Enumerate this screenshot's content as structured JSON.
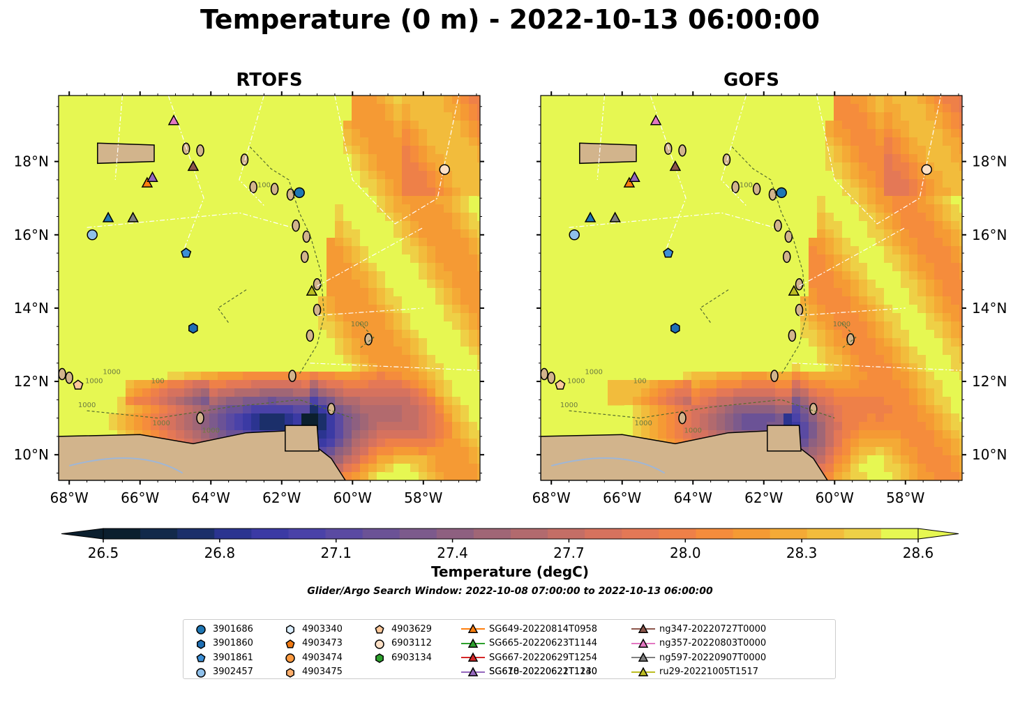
{
  "title": "Temperature (0 m) - 2022-10-13 06:00:00",
  "colors": {
    "land": "#d2b48c",
    "ocean_warm": "#e6f752",
    "lake": "#9fb6d6",
    "cmap": [
      "#0b1f2e",
      "#12294a",
      "#1b2f6a",
      "#2b3490",
      "#3b3aa4",
      "#4a42a8",
      "#5a4aa2",
      "#6b5296",
      "#7c5a8c",
      "#8e6080",
      "#a06676",
      "#b26a6e",
      "#c46e66",
      "#d6725e",
      "#e47856",
      "#ee8048",
      "#f58c3c",
      "#f59a34",
      "#f4aa36",
      "#f2bc3c",
      "#eed046",
      "#e6f752"
    ]
  },
  "chart_data": {
    "type": "heatmap",
    "variable": "Temperature (degC)",
    "panels": [
      {
        "name": "RTOFS"
      },
      {
        "name": "GOFS"
      }
    ],
    "xlim": [
      -68.3,
      -56.4
    ],
    "ylim": [
      9.3,
      19.8
    ],
    "x_ticks": [
      -68,
      -66,
      -64,
      -62,
      -60,
      -58
    ],
    "x_tick_labels": [
      "68°W",
      "66°W",
      "64°W",
      "62°W",
      "60°W",
      "58°W"
    ],
    "y_ticks": [
      10,
      12,
      14,
      16,
      18
    ],
    "y_tick_labels": [
      "10°N",
      "12°N",
      "14°N",
      "16°N",
      "18°N"
    ],
    "colorbar": {
      "min": 26.5,
      "max": 28.6,
      "ticks": [
        26.5,
        26.8,
        27.1,
        27.4,
        27.7,
        28.0,
        28.3,
        28.6
      ],
      "tick_labels": [
        "26.5",
        "26.8",
        "27.1",
        "27.4",
        "27.7",
        "28.0",
        "28.3",
        "28.6"
      ],
      "label": "Temperature (degC)",
      "extend": "both"
    },
    "contour_labels": [
      "1000",
      "1000",
      "100",
      "100",
      "1000",
      "1000",
      "1000",
      "1000"
    ],
    "observations": [
      {
        "id": "3901686",
        "lon": -61.5,
        "lat": 17.15,
        "marker": "circle",
        "color": "#1f77b4"
      },
      {
        "id": "3901860",
        "lon": -64.5,
        "lat": 13.45,
        "marker": "hexagon",
        "color": "#1f6fb4"
      },
      {
        "id": "3901861",
        "lon": -64.7,
        "lat": 15.5,
        "marker": "pentagon",
        "color": "#3c8fd6"
      },
      {
        "id": "3902457",
        "lon": -67.35,
        "lat": 16.0,
        "marker": "circle",
        "color": "#8fc0ea"
      },
      {
        "id": "4903340",
        "lon": null,
        "lat": null,
        "marker": "hexagon",
        "color": "#dbeeff"
      },
      {
        "id": "4903473",
        "lon": null,
        "lat": null,
        "marker": "pentagon",
        "color": "#f07a14"
      },
      {
        "id": "4903474",
        "lon": null,
        "lat": null,
        "marker": "circle",
        "color": "#fd9a40"
      },
      {
        "id": "4903475",
        "lon": null,
        "lat": null,
        "marker": "hexagon",
        "color": "#fdae6b"
      },
      {
        "id": "4903629",
        "lon": -67.75,
        "lat": 11.9,
        "marker": "pentagon",
        "color": "#fdc89a"
      },
      {
        "id": "6903112",
        "lon": -57.4,
        "lat": 17.78,
        "marker": "circle",
        "color": "#fde0c6"
      },
      {
        "id": "6903134",
        "lon": null,
        "lat": null,
        "marker": "hexagon",
        "color": "#2ca02c"
      },
      {
        "id": "SG610-20220621T1130",
        "lon": -66.9,
        "lat": 16.45,
        "marker": "triangle",
        "color": "#1f77b4",
        "line": "#1f77b4"
      },
      {
        "id": "SG649-20220814T0958",
        "lon": -65.8,
        "lat": 17.4,
        "marker": "triangle",
        "color": "#ff7f0e",
        "line": "#ff7f0e"
      },
      {
        "id": "SG665-20220623T1144",
        "lon": null,
        "lat": null,
        "marker": "triangle",
        "color": "#2ca02c",
        "line": "#2ca02c"
      },
      {
        "id": "SG667-20220629T1254",
        "lon": null,
        "lat": null,
        "marker": "triangle",
        "color": "#d62728",
        "line": "#d62728"
      },
      {
        "id": "SG678-20220622T1240",
        "lon": -65.65,
        "lat": 17.55,
        "marker": "triangle",
        "color": "#9467bd",
        "line": "#9467bd"
      },
      {
        "id": "ng347-20220727T0000",
        "lon": -64.5,
        "lat": 17.85,
        "marker": "triangle",
        "color": "#8c564b",
        "line": "#8c564b"
      },
      {
        "id": "ng357-20220803T0000",
        "lon": -65.05,
        "lat": 19.1,
        "marker": "triangle",
        "color": "#e377c2",
        "line": "#e377c2"
      },
      {
        "id": "ng597-20220907T0000",
        "lon": -66.2,
        "lat": 16.45,
        "marker": "triangle",
        "color": "#7f7f7f",
        "line": "#7f7f7f"
      },
      {
        "id": "ru29-20221005T1517",
        "lon": -61.15,
        "lat": 14.45,
        "marker": "triangle",
        "color": "#bcbd22",
        "line": "#bcbd22"
      }
    ]
  },
  "search_window": "Glider/Argo Search Window: 2022-10-08 07:00:00 to 2022-10-13 06:00:00"
}
